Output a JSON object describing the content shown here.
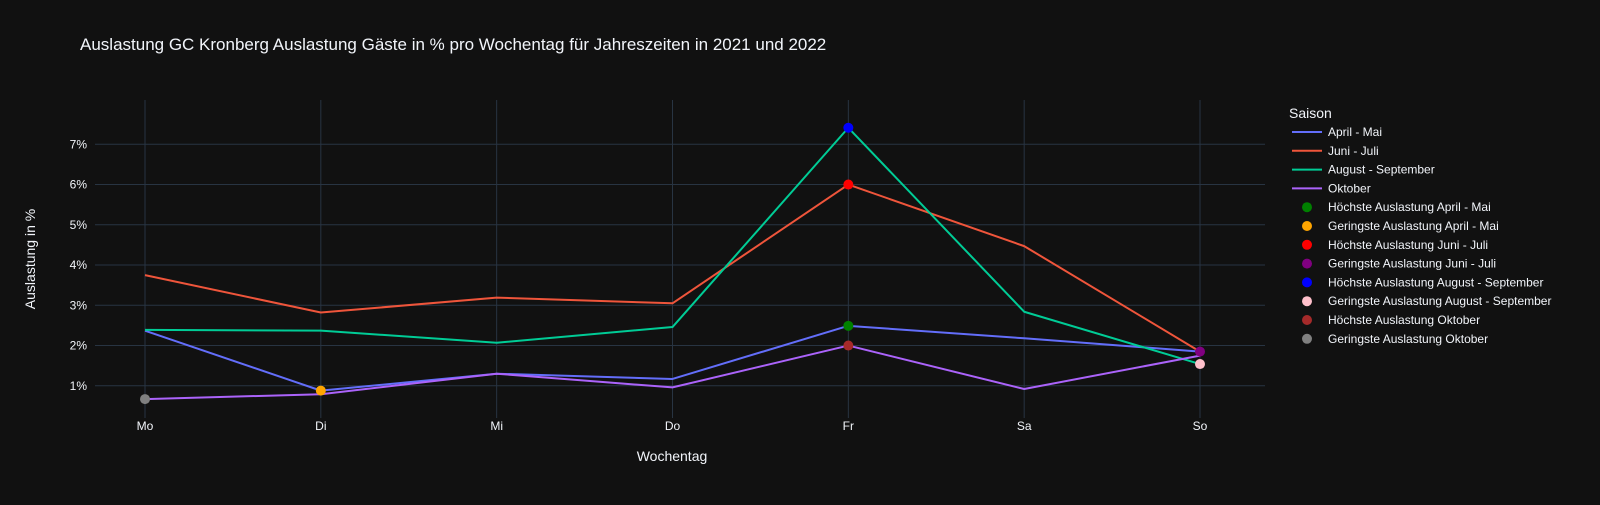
{
  "chart_data": {
    "type": "line",
    "title": "Auslastung GC Kronberg Auslastung Gäste in % pro Wochentag für Jahreszeiten in 2021 und 2022",
    "xlabel": "Wochentag",
    "ylabel": "Auslastung in %",
    "categories": [
      "Mo",
      "Di",
      "Mi",
      "Do",
      "Fr",
      "Sa",
      "So"
    ],
    "ylim": [
      0.2,
      8.1
    ],
    "yticks": [
      1,
      2,
      3,
      4,
      5,
      6,
      7
    ],
    "ytick_labels": [
      "1%",
      "2%",
      "3%",
      "4%",
      "5%",
      "6%",
      "7%"
    ],
    "grid": true,
    "legend_title": "Saison",
    "legend_position": "right",
    "series": [
      {
        "name": "April - Mai",
        "color": "#636efa",
        "values": [
          2.37,
          0.88,
          1.3,
          1.17,
          2.49,
          2.18,
          1.85
        ]
      },
      {
        "name": "Juni - Juli",
        "color": "#ef553b",
        "values": [
          3.75,
          2.82,
          3.19,
          3.05,
          6.0,
          4.47,
          1.85
        ]
      },
      {
        "name": "August - September",
        "color": "#00cc96",
        "values": [
          2.39,
          2.37,
          2.07,
          2.46,
          7.41,
          2.84,
          1.54
        ]
      },
      {
        "name": "Oktober",
        "color": "#ab63fa",
        "values": [
          0.67,
          0.79,
          1.3,
          0.96,
          2.0,
          0.92,
          1.75
        ]
      }
    ],
    "markers": [
      {
        "name": "Höchste Auslastung April - Mai",
        "color": "#008000",
        "x": "Fr",
        "y": 2.49
      },
      {
        "name": "Geringste Auslastung April - Mai",
        "color": "#ffa500",
        "x": "Di",
        "y": 0.88
      },
      {
        "name": "Höchste Auslastung Juni - Juli",
        "color": "#ff0000",
        "x": "Fr",
        "y": 6.0
      },
      {
        "name": "Geringste Auslastung Juni - Juli",
        "color": "#800080",
        "x": "So",
        "y": 1.85
      },
      {
        "name": "Höchste Auslastung August - September",
        "color": "#0000ff",
        "x": "Fr",
        "y": 7.41
      },
      {
        "name": "Geringste Auslastung August - September",
        "color": "#ffc0cb",
        "x": "So",
        "y": 1.54
      },
      {
        "name": "Höchste Auslastung Oktober",
        "color": "#a52a2a",
        "x": "Fr",
        "y": 2.0
      },
      {
        "name": "Geringste Auslastung Oktober",
        "color": "#808080",
        "x": "Mo",
        "y": 0.67
      }
    ]
  },
  "theme": {
    "background": "#111111",
    "grid_color": "#283442",
    "text_color": "#f2f5fa"
  }
}
